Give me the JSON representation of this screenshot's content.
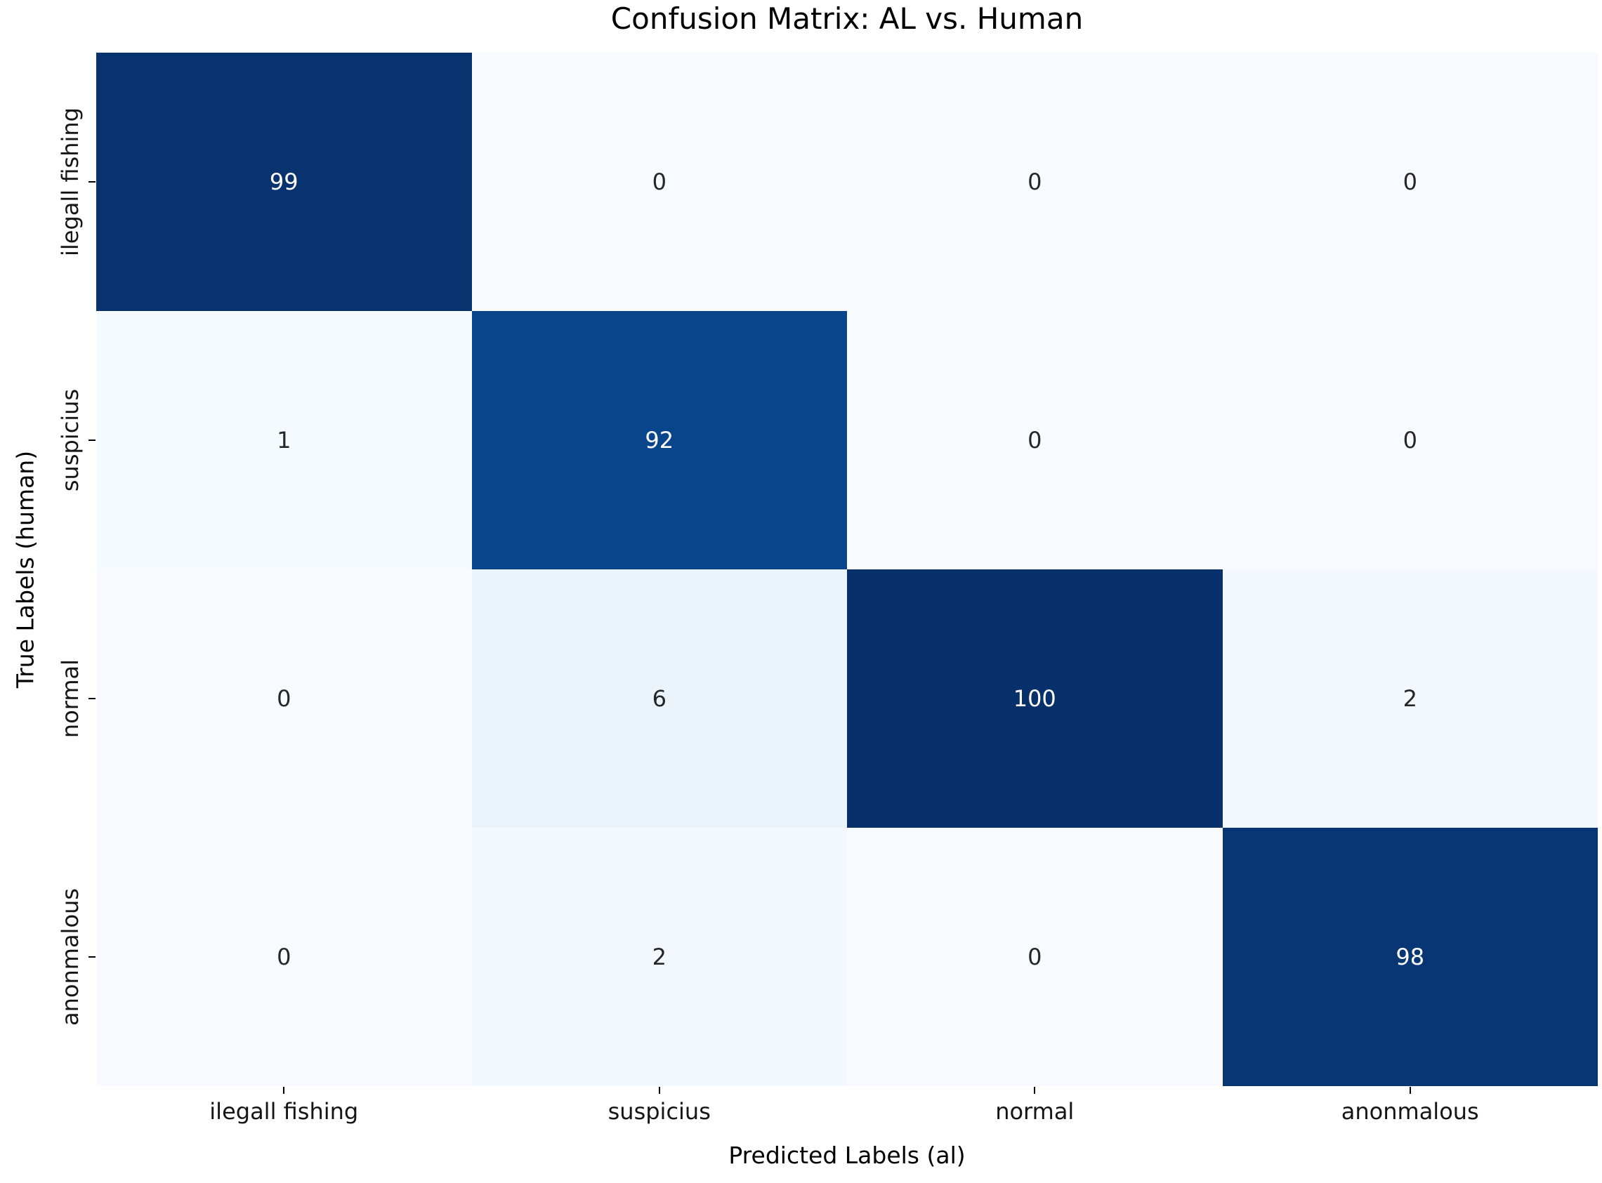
{
  "title": "Confusion Matrix: AL vs. Human",
  "chart_data": {
    "type": "heatmap",
    "title": "Confusion Matrix: AL vs. Human",
    "xlabel": "Predicted Labels (al)",
    "ylabel": "True Labels (human)",
    "x_tick_labels": [
      "ilegall fishing",
      "suspicius",
      "normal",
      "anonmalous"
    ],
    "y_tick_labels": [
      "ilegall fishing",
      "suspicius",
      "normal",
      "anonmalous"
    ],
    "values": [
      [
        99,
        0,
        0,
        0
      ],
      [
        1,
        92,
        0,
        0
      ],
      [
        0,
        6,
        100,
        2
      ],
      [
        0,
        2,
        0,
        98
      ]
    ],
    "vmin": 0,
    "vmax": 100,
    "colormap": "Blues",
    "grid": false,
    "legend": "none",
    "colors": {
      "background": "#ffffff",
      "tick_color": "#000000",
      "cell_colors": [
        [
          "#08336f",
          "#f7fbff",
          "#f7fbff",
          "#f7fbff"
        ],
        [
          "#f5fafe",
          "#08458a",
          "#f7fbff",
          "#f7fbff"
        ],
        [
          "#f7fbff",
          "#ebf3fb",
          "#08306b",
          "#f3f8fe"
        ],
        [
          "#f7fbff",
          "#f3f8fe",
          "#f7fbff",
          "#083573"
        ]
      ],
      "text_colors": [
        [
          "#ffffff",
          "#262626",
          "#262626",
          "#262626"
        ],
        [
          "#262626",
          "#ffffff",
          "#262626",
          "#262626"
        ],
        [
          "#262626",
          "#262626",
          "#ffffff",
          "#262626"
        ],
        [
          "#262626",
          "#262626",
          "#262626",
          "#ffffff"
        ]
      ]
    }
  }
}
